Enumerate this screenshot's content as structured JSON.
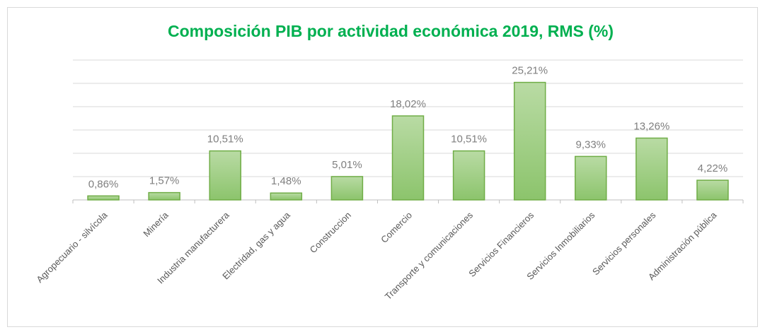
{
  "chart_data": {
    "type": "bar",
    "title": "Composición PIB por actividad económica 2019, RMS (%)",
    "categories": [
      "Agropecuario - silvícola",
      "Minería",
      "Industria manufacturera",
      "Electridad, gas y agua",
      "Construccion",
      "Comercio",
      "Transporte y comunicaciones",
      "Servicios Financieros",
      "Servicios Inmobiliarios",
      "Servicios personales",
      "Administración pública"
    ],
    "values": [
      0.86,
      1.57,
      10.51,
      1.48,
      5.01,
      18.02,
      10.51,
      25.21,
      9.33,
      13.26,
      4.22
    ],
    "value_labels": [
      "0,86%",
      "1,57%",
      "10,51%",
      "1,48%",
      "5,01%",
      "18,02%",
      "10,51%",
      "25,21%",
      "9,33%",
      "13,26%",
      "4,22%"
    ],
    "color": "#a9d18e",
    "ylim": [
      0,
      30
    ],
    "yticks": [
      0,
      5,
      10,
      15,
      20,
      25,
      30
    ],
    "grid": true
  }
}
